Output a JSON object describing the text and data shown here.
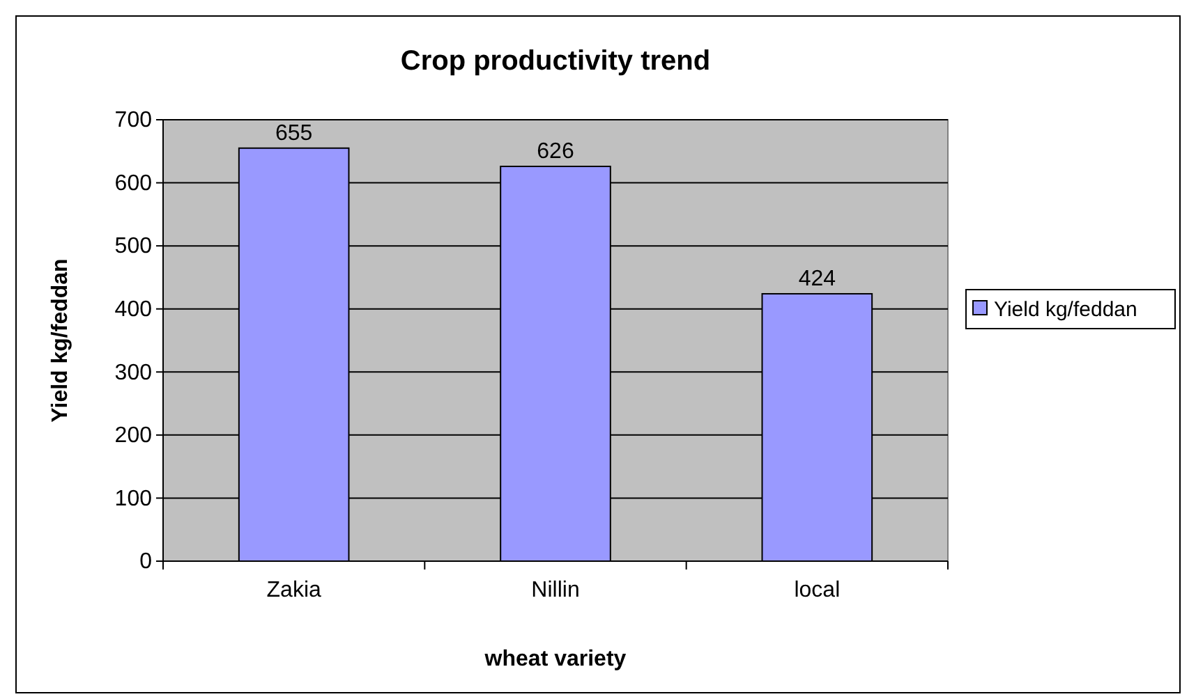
{
  "chart_data": {
    "type": "bar",
    "title": "Crop productivity trend",
    "xlabel": "wheat variety",
    "ylabel": "Yield kg/feddan",
    "categories": [
      "Zakia",
      "Nillin",
      "local"
    ],
    "series": [
      {
        "name": "Yield kg/feddan",
        "color": "#9999ff",
        "values": [
          655,
          626,
          424
        ]
      }
    ],
    "ylim": [
      0,
      700
    ],
    "yticks": [
      0,
      100,
      200,
      300,
      400,
      500,
      600,
      700
    ],
    "grid": "y",
    "legend": "right",
    "data_labels": true
  }
}
